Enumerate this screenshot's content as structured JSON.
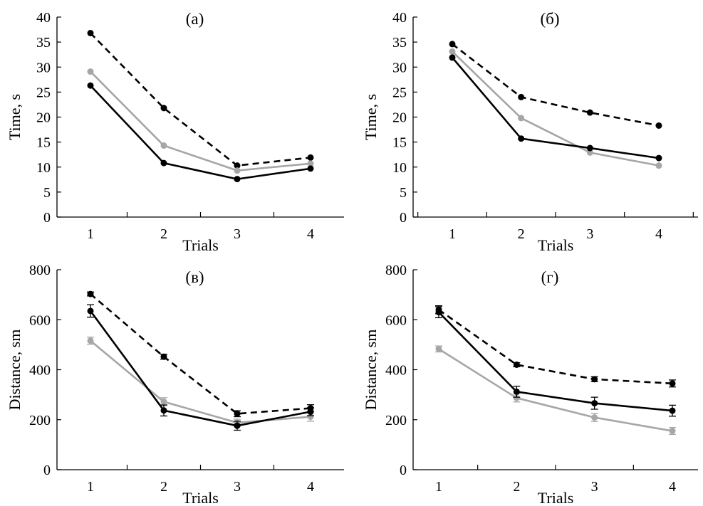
{
  "chart_data": [
    {
      "type": "line",
      "title": "(а)",
      "xlabel": "Trials",
      "ylabel": "Time, s",
      "categories": [
        "1",
        "2",
        "3",
        "4"
      ],
      "xlim": [
        0.5,
        4.5
      ],
      "ylim": [
        0,
        40
      ],
      "yticks": [
        0,
        5,
        10,
        15,
        20,
        25,
        30,
        35,
        40
      ],
      "grid": false,
      "series": [
        {
          "style": "dashed",
          "color": "#000000",
          "values": [
            36.8,
            21.8,
            10.3,
            11.9
          ]
        },
        {
          "style": "solid",
          "color": "#a6a6a6",
          "values": [
            29.1,
            14.3,
            9.3,
            10.7
          ]
        },
        {
          "style": "solid",
          "color": "#000000",
          "values": [
            26.3,
            10.8,
            7.6,
            9.7
          ]
        }
      ]
    },
    {
      "type": "line",
      "title": "(б)",
      "xlabel": "Trials",
      "ylabel": "Time, s",
      "categories": [
        "1",
        "2",
        "3",
        "4"
      ],
      "xlim": [
        0.5,
        4.5
      ],
      "ylim": [
        0,
        40
      ],
      "yticks": [
        0,
        5,
        10,
        15,
        20,
        25,
        30,
        35,
        40
      ],
      "grid": false,
      "series": [
        {
          "style": "dashed",
          "color": "#000000",
          "values": [
            34.6,
            24.0,
            20.9,
            18.3
          ]
        },
        {
          "style": "solid",
          "color": "#a6a6a6",
          "values": [
            33.1,
            19.8,
            12.9,
            10.3
          ]
        },
        {
          "style": "solid",
          "color": "#000000",
          "values": [
            31.9,
            15.7,
            13.8,
            11.8
          ]
        }
      ]
    },
    {
      "type": "line",
      "title": "(в)",
      "xlabel": "Trials",
      "ylabel": "Distance, sm",
      "categories": [
        "1",
        "2",
        "3",
        "4"
      ],
      "xlim": [
        0.5,
        4.5
      ],
      "ylim": [
        0,
        800
      ],
      "yticks": [
        0,
        200,
        400,
        600,
        800
      ],
      "grid": false,
      "series": [
        {
          "style": "dashed",
          "color": "#000000",
          "values": [
            703,
            452,
            224,
            246
          ],
          "errors": [
            8,
            10,
            12,
            14
          ]
        },
        {
          "style": "solid",
          "color": "#a6a6a6",
          "values": [
            516,
            272,
            188,
            212
          ],
          "errors": [
            14,
            16,
            14,
            18
          ]
        },
        {
          "style": "solid",
          "color": "#000000",
          "values": [
            635,
            237,
            176,
            232
          ],
          "errors": [
            25,
            22,
            18,
            16
          ]
        }
      ]
    },
    {
      "type": "line",
      "title": "(г)",
      "xlabel": "Trials",
      "ylabel": "Distance, sm",
      "categories": [
        "1",
        "2",
        "3",
        "4"
      ],
      "xlim": [
        0.5,
        4.5
      ],
      "ylim": [
        0,
        800
      ],
      "yticks": [
        0,
        200,
        400,
        600,
        800
      ],
      "grid": false,
      "series": [
        {
          "style": "dashed",
          "color": "#000000",
          "values": [
            640,
            420,
            362,
            345
          ],
          "errors": [
            16,
            8,
            10,
            14
          ]
        },
        {
          "style": "solid",
          "color": "#a6a6a6",
          "values": [
            483,
            287,
            209,
            155
          ],
          "errors": [
            12,
            16,
            16,
            14
          ]
        },
        {
          "style": "solid",
          "color": "#000000",
          "values": [
            630,
            312,
            266,
            236
          ],
          "errors": [
            22,
            22,
            24,
            22
          ]
        }
      ]
    }
  ]
}
